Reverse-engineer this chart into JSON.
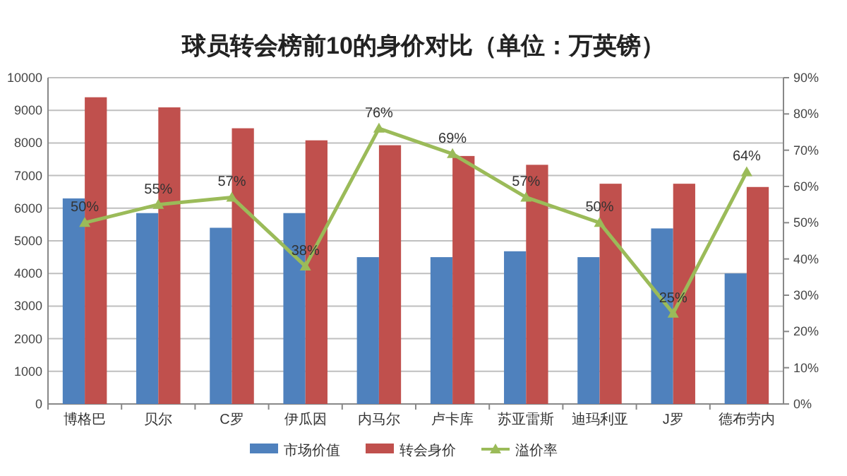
{
  "chart_data": {
    "type": "bar",
    "title": "球员转会榜前10的身价对比（单位：万英镑）",
    "categories": [
      "博格巴",
      "贝尔",
      "C罗",
      "伊瓜因",
      "内马尔",
      "卢卡库",
      "苏亚雷斯",
      "迪玛利亚",
      "J罗",
      "德布劳内"
    ],
    "series": [
      {
        "name": "市场价值",
        "color": "#4f81bd",
        "values": [
          6300,
          5850,
          5400,
          5850,
          4500,
          4500,
          4680,
          4500,
          5380,
          4000
        ]
      },
      {
        "name": "转会身价",
        "color": "#c0504d",
        "values": [
          9400,
          9090,
          8450,
          8080,
          7930,
          7600,
          7330,
          6750,
          6750,
          6650
        ]
      },
      {
        "name": "溢价率",
        "type": "line",
        "axis": "y2",
        "color": "#9bbb59",
        "marker": "triangle",
        "values": [
          50,
          55,
          57,
          38,
          76,
          69,
          57,
          50,
          25,
          64
        ],
        "value_labels": [
          "50%",
          "55%",
          "57%",
          "38%",
          "76%",
          "69%",
          "57%",
          "50%",
          "25%",
          "64%"
        ]
      }
    ],
    "ylim": [
      0,
      10000
    ],
    "yticks": [
      0,
      1000,
      2000,
      3000,
      4000,
      5000,
      6000,
      7000,
      8000,
      9000,
      10000
    ],
    "y2lim": [
      0,
      90
    ],
    "y2ticks": [
      {
        "value": 0,
        "label": "0%"
      },
      {
        "value": 10,
        "label": "10%"
      },
      {
        "value": 20,
        "label": "20%"
      },
      {
        "value": 30,
        "label": "30%"
      },
      {
        "value": 40,
        "label": "40%"
      },
      {
        "value": 50,
        "label": "50%"
      },
      {
        "value": 60,
        "label": "60%"
      },
      {
        "value": 70,
        "label": "70%"
      },
      {
        "value": 80,
        "label": "80%"
      },
      {
        "value": 90,
        "label": "90%"
      }
    ],
    "grid": "y",
    "legend": "bottom"
  }
}
